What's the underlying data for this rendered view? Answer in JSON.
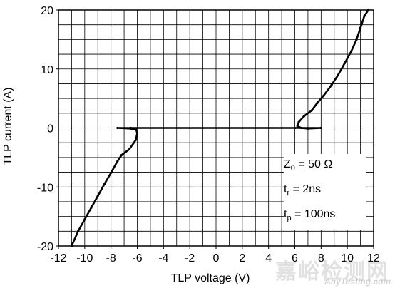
{
  "chart_data": {
    "type": "line",
    "xlabel": "TLP voltage (V)",
    "ylabel": "TLP current (A)",
    "xlim": [
      -12,
      12
    ],
    "ylim": [
      -20,
      20
    ],
    "x_ticks": [
      -12,
      -10,
      -8,
      -6,
      -4,
      -2,
      0,
      2,
      4,
      6,
      8,
      10,
      12
    ],
    "y_ticks": [
      -20,
      -10,
      0,
      10,
      20
    ],
    "x_tick_labels": [
      "-12",
      "-10",
      "-8",
      "-6",
      "-4",
      "-2",
      "0",
      "2",
      "4",
      "6",
      "8",
      "10",
      "12"
    ],
    "y_tick_labels": [
      "-20",
      "-10",
      "0",
      "10",
      "20"
    ],
    "grid": true,
    "grid_step_x": 1,
    "grid_step_y": 2.5,
    "series": [
      {
        "color": "#000000",
        "points": [
          [
            -11.0,
            -20
          ],
          [
            -10.5,
            -17.5
          ],
          [
            -10.0,
            -15.5
          ],
          [
            -9.5,
            -13.5
          ],
          [
            -9.0,
            -11.5
          ],
          [
            -8.5,
            -9.5
          ],
          [
            -8.0,
            -7.6
          ],
          [
            -7.5,
            -5.6
          ],
          [
            -7.2,
            -4.6
          ],
          [
            -6.6,
            -3.6
          ],
          [
            -6.1,
            -2.0
          ],
          [
            -6.0,
            -0.8
          ],
          [
            -6.1,
            -0.3
          ],
          [
            -6.5,
            -0.1
          ],
          [
            -7.5,
            0.0
          ],
          [
            -6.5,
            0.0
          ],
          [
            6.0,
            0.0
          ],
          [
            8.0,
            0.0
          ],
          [
            7.0,
            -0.1
          ],
          [
            6.5,
            0.0
          ],
          [
            6.2,
            0.3
          ],
          [
            6.3,
            1.0
          ],
          [
            6.7,
            2.0
          ],
          [
            7.3,
            3.0
          ],
          [
            7.7,
            4.2
          ],
          [
            8.2,
            5.5
          ],
          [
            8.8,
            7.3
          ],
          [
            9.3,
            9.0
          ],
          [
            9.8,
            11.0
          ],
          [
            10.3,
            13.0
          ],
          [
            10.7,
            15.0
          ],
          [
            11.0,
            17.0
          ],
          [
            11.3,
            19.0
          ],
          [
            11.6,
            20.0
          ]
        ]
      }
    ],
    "annotation": {
      "z0": "Z",
      "z0_sub": "0",
      "z0_val": " = 50 Ω",
      "tr": "t",
      "tr_sub": "r",
      "tr_val": " = 2ns",
      "tp": "t",
      "tp_sub": "p",
      "tp_val": " = 100ns"
    }
  },
  "watermark": {
    "text": "嘉峪检测网",
    "url": "AnyTesting.com"
  }
}
